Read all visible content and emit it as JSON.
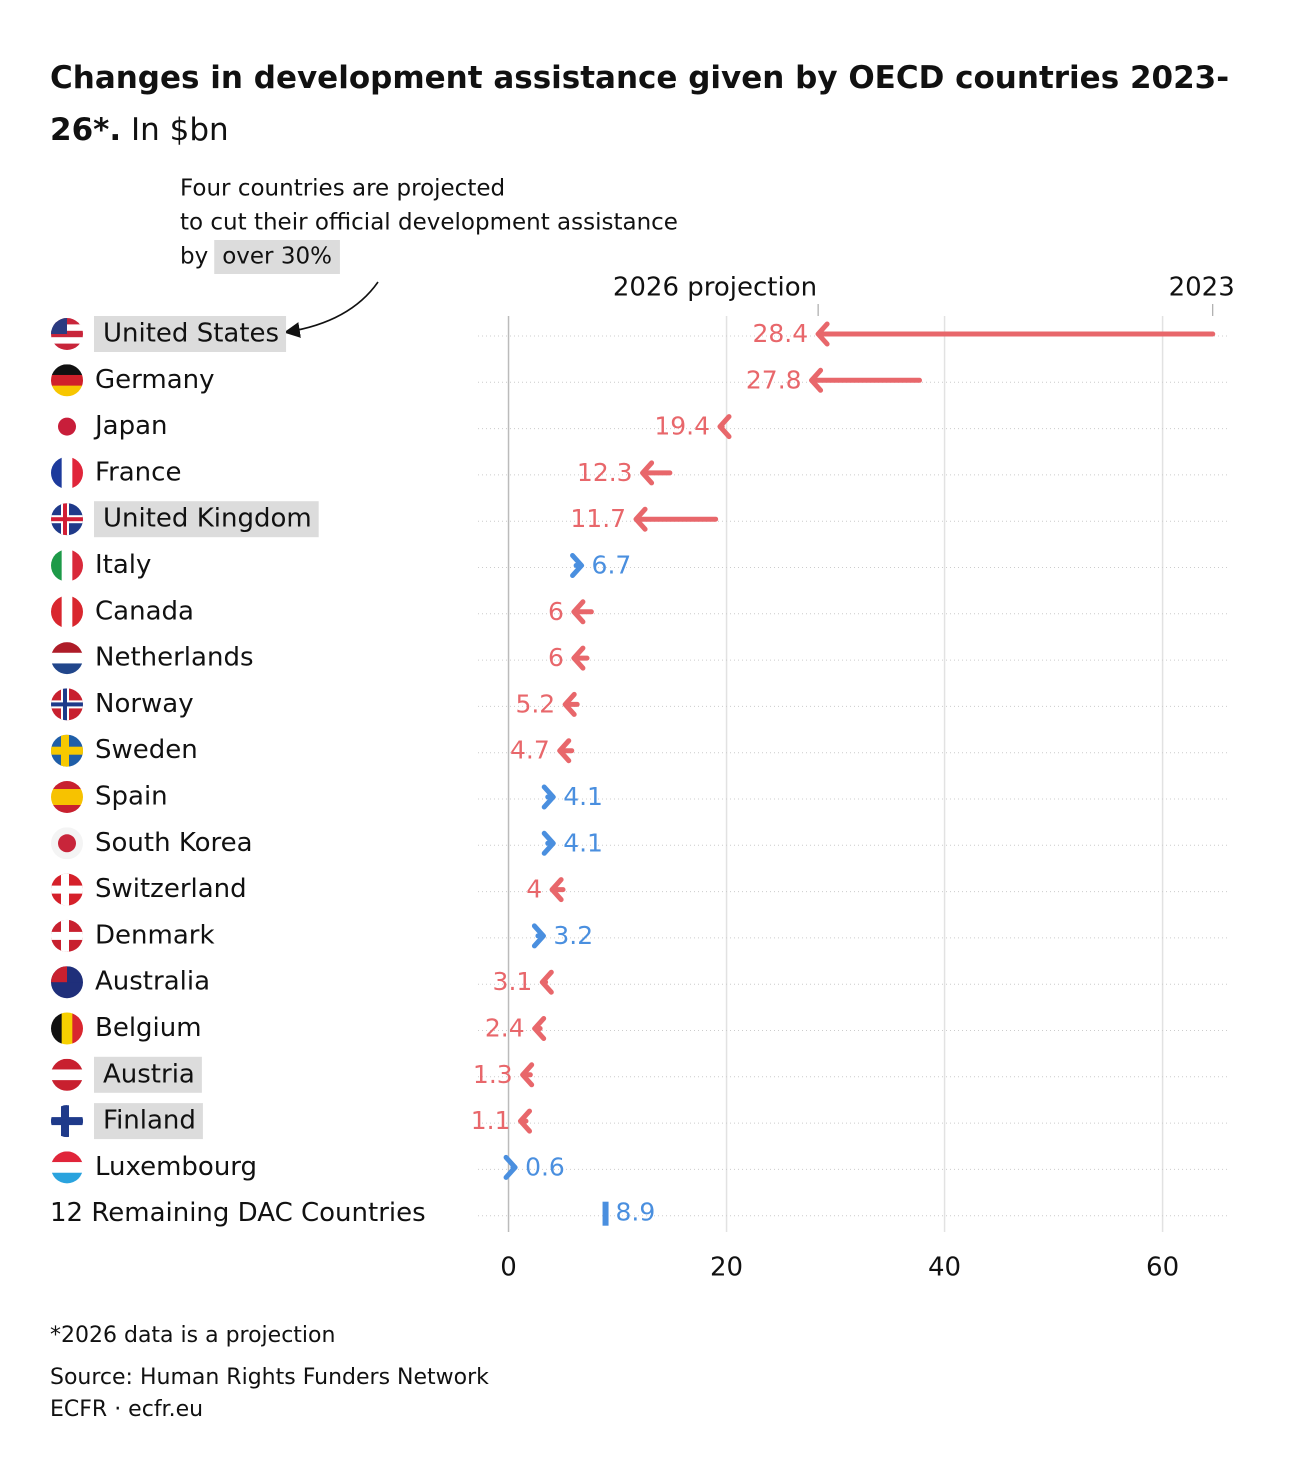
{
  "chart_data": {
    "type": "arrow",
    "title": "Changes in development assistance given by OECD countries 2023-26*.",
    "subtitle": "In $bn",
    "annotation": {
      "lines": [
        "Four countries are projected",
        "to cut their official development assistance",
        "by"
      ],
      "highlight": "over 30%"
    },
    "categories": [
      "United States",
      "Germany",
      "Japan",
      "France",
      "United Kingdom",
      "Italy",
      "Canada",
      "Netherlands",
      "Norway",
      "Sweden",
      "Spain",
      "South Korea",
      "Switzerland",
      "Denmark",
      "Australia",
      "Belgium",
      "Austria",
      "Finland",
      "Luxembourg",
      "12 Remaining DAC Countries"
    ],
    "highlight": [
      0,
      4,
      16,
      17
    ],
    "series": [
      {
        "name": "2023",
        "values": [
          64.6,
          37.7,
          19.6,
          14.8,
          19.0,
          6.2,
          7.6,
          7.2,
          6.3,
          5.8,
          3.6,
          3.6,
          5.0,
          2.7,
          3.4,
          2.9,
          2.0,
          1.6,
          0.4,
          8.9
        ]
      },
      {
        "name": "2026 projection",
        "values": [
          28.4,
          27.8,
          19.4,
          12.3,
          11.7,
          6.7,
          6,
          6,
          5.2,
          4.7,
          4.1,
          4.1,
          4,
          3.2,
          3.1,
          2.4,
          1.3,
          1.1,
          0.6,
          8.9
        ]
      }
    ],
    "colors": {
      "decrease": "#e8676b",
      "increase": "#4a8fdf"
    },
    "xlim": [
      -2.8,
      66
    ],
    "xticks": [
      0,
      20,
      40,
      60
    ],
    "grid": true,
    "note": "*2026 data is a projection",
    "source": "Source: Human Rights Funders Network",
    "credit": "ECFR · ecfr.eu"
  }
}
